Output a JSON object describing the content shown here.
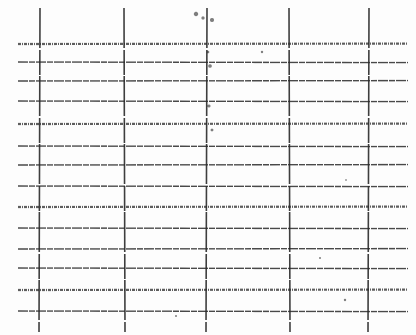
{
  "document": {
    "kind": "blank ruled grid form",
    "column_count": 5,
    "row_count": 15,
    "ink_color": "#2a2a2a",
    "paper_color": "#fdfdfd"
  }
}
